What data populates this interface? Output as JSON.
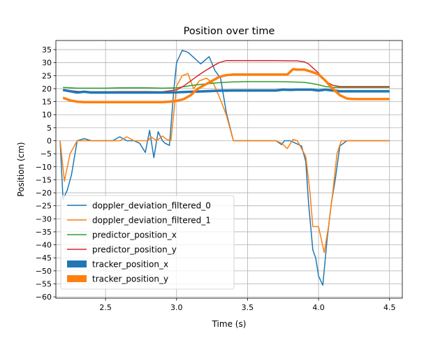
{
  "chart_data": {
    "type": "line",
    "title": "Position over time",
    "xlabel": "Time (s)",
    "ylabel": "Position (cm)",
    "xlim": [
      2.15,
      4.59
    ],
    "ylim": [
      -60.5,
      38.5
    ],
    "xticks": [
      2.5,
      3.0,
      3.5,
      4.0,
      4.5
    ],
    "xtick_labels": [
      "2.5",
      "3.0",
      "3.5",
      "4.0",
      "4.5"
    ],
    "yticks": [
      -60,
      -55,
      -50,
      -45,
      -40,
      -35,
      -30,
      -25,
      -20,
      -15,
      -10,
      -5,
      0,
      5,
      10,
      15,
      20,
      25,
      30,
      35
    ],
    "ytick_labels": [
      "−60",
      "−55",
      "−50",
      "−45",
      "−40",
      "−35",
      "−30",
      "−25",
      "−20",
      "−15",
      "−10",
      "−5",
      "0",
      "5",
      "10",
      "15",
      "20",
      "25",
      "30",
      "35"
    ],
    "grid": true,
    "legend_position": "lower-left",
    "series": [
      {
        "name": "doppler_deviation_filtered_0",
        "color": "#1f77b4",
        "width": 1.5,
        "points": [
          [
            2.18,
            0
          ],
          [
            2.2,
            -22.5
          ],
          [
            2.23,
            -19
          ],
          [
            2.26,
            -13
          ],
          [
            2.3,
            0
          ],
          [
            2.35,
            0.8
          ],
          [
            2.4,
            0
          ],
          [
            2.45,
            0
          ],
          [
            2.5,
            0
          ],
          [
            2.55,
            0
          ],
          [
            2.6,
            1.5
          ],
          [
            2.65,
            0
          ],
          [
            2.7,
            0
          ],
          [
            2.74,
            -1
          ],
          [
            2.78,
            -4.5
          ],
          [
            2.81,
            4
          ],
          [
            2.84,
            -6.5
          ],
          [
            2.87,
            3.5
          ],
          [
            2.9,
            0
          ],
          [
            2.92,
            -1
          ],
          [
            2.95,
            -1.8
          ],
          [
            2.98,
            19
          ],
          [
            3.0,
            30
          ],
          [
            3.04,
            34.7
          ],
          [
            3.08,
            34
          ],
          [
            3.12,
            32
          ],
          [
            3.17,
            29.5
          ],
          [
            3.23,
            32.3
          ],
          [
            3.27,
            27
          ],
          [
            3.31,
            24
          ],
          [
            3.35,
            11
          ],
          [
            3.4,
            0
          ],
          [
            3.45,
            0
          ],
          [
            3.5,
            0
          ],
          [
            3.55,
            0
          ],
          [
            3.6,
            0
          ],
          [
            3.65,
            0
          ],
          [
            3.7,
            0
          ],
          [
            3.74,
            -1.5
          ],
          [
            3.76,
            0
          ],
          [
            3.8,
            0
          ],
          [
            3.84,
            -1
          ],
          [
            3.88,
            -2
          ],
          [
            3.91,
            -8
          ],
          [
            3.93,
            -24
          ],
          [
            3.96,
            -42
          ],
          [
            3.98,
            -45
          ],
          [
            4.0,
            -52
          ],
          [
            4.03,
            -55.5
          ],
          [
            4.06,
            -38
          ],
          [
            4.09,
            -24
          ],
          [
            4.12,
            -14
          ],
          [
            4.15,
            -2
          ],
          [
            4.2,
            0
          ],
          [
            4.3,
            0
          ],
          [
            4.4,
            0
          ],
          [
            4.5,
            0
          ]
        ]
      },
      {
        "name": "doppler_deviation_filtered_1",
        "color": "#ff7f0e",
        "width": 1.5,
        "points": [
          [
            2.18,
            0
          ],
          [
            2.21,
            -15.5
          ],
          [
            2.25,
            -5
          ],
          [
            2.3,
            0
          ],
          [
            2.35,
            0
          ],
          [
            2.4,
            0
          ],
          [
            2.45,
            0
          ],
          [
            2.5,
            0
          ],
          [
            2.55,
            0
          ],
          [
            2.6,
            0
          ],
          [
            2.65,
            1.5
          ],
          [
            2.7,
            0
          ],
          [
            2.75,
            0
          ],
          [
            2.8,
            0
          ],
          [
            2.82,
            1.5
          ],
          [
            2.86,
            0
          ],
          [
            2.9,
            1.8
          ],
          [
            2.93,
            0.5
          ],
          [
            2.96,
            0
          ],
          [
            3.0,
            21
          ],
          [
            3.04,
            25
          ],
          [
            3.08,
            25.8
          ],
          [
            3.12,
            20
          ],
          [
            3.16,
            23
          ],
          [
            3.21,
            24
          ],
          [
            3.26,
            22
          ],
          [
            3.3,
            17
          ],
          [
            3.35,
            10
          ],
          [
            3.4,
            0
          ],
          [
            3.45,
            0
          ],
          [
            3.5,
            0
          ],
          [
            3.55,
            0
          ],
          [
            3.6,
            0
          ],
          [
            3.65,
            0
          ],
          [
            3.7,
            0
          ],
          [
            3.74,
            -1
          ],
          [
            3.78,
            -3
          ],
          [
            3.82,
            0.5
          ],
          [
            3.85,
            0
          ],
          [
            3.88,
            -3
          ],
          [
            3.91,
            -6
          ],
          [
            3.94,
            -20
          ],
          [
            3.96,
            -33
          ],
          [
            4.0,
            -33
          ],
          [
            4.04,
            -43
          ],
          [
            4.07,
            -33
          ],
          [
            4.1,
            -20
          ],
          [
            4.13,
            -5
          ],
          [
            4.16,
            0
          ],
          [
            4.2,
            0
          ],
          [
            4.3,
            0
          ],
          [
            4.4,
            0
          ],
          [
            4.5,
            0
          ]
        ]
      },
      {
        "name": "predictor_position_x",
        "color": "#2ca02c",
        "width": 1.5,
        "points": [
          [
            2.2,
            20.5
          ],
          [
            2.3,
            20.2
          ],
          [
            2.4,
            20.2
          ],
          [
            2.5,
            20.2
          ],
          [
            2.6,
            20.3
          ],
          [
            2.7,
            20.3
          ],
          [
            2.8,
            20.3
          ],
          [
            2.9,
            20.2
          ],
          [
            3.0,
            20.3
          ],
          [
            3.1,
            21.2
          ],
          [
            3.2,
            21.8
          ],
          [
            3.3,
            22.3
          ],
          [
            3.4,
            22.6
          ],
          [
            3.5,
            22.7
          ],
          [
            3.6,
            22.7
          ],
          [
            3.7,
            22.7
          ],
          [
            3.8,
            22.6
          ],
          [
            3.9,
            22.4
          ],
          [
            3.95,
            22
          ],
          [
            4.0,
            21.5
          ],
          [
            4.05,
            20.8
          ],
          [
            4.1,
            20.5
          ],
          [
            4.2,
            20.5
          ],
          [
            4.3,
            20.5
          ],
          [
            4.4,
            20.5
          ],
          [
            4.5,
            20.5
          ]
        ]
      },
      {
        "name": "predictor_position_y",
        "color": "#d62728",
        "width": 1.5,
        "points": [
          [
            2.2,
            19.5
          ],
          [
            2.3,
            19
          ],
          [
            2.35,
            18.8
          ],
          [
            2.4,
            18.8
          ],
          [
            2.5,
            18.8
          ],
          [
            2.6,
            18.9
          ],
          [
            2.7,
            18.9
          ],
          [
            2.8,
            18.9
          ],
          [
            2.9,
            18.8
          ],
          [
            3.0,
            19.5
          ],
          [
            3.05,
            21
          ],
          [
            3.1,
            23
          ],
          [
            3.15,
            25
          ],
          [
            3.2,
            26.8
          ],
          [
            3.25,
            28.5
          ],
          [
            3.3,
            30
          ],
          [
            3.35,
            30.8
          ],
          [
            3.4,
            30.8
          ],
          [
            3.5,
            30.8
          ],
          [
            3.6,
            30.8
          ],
          [
            3.7,
            30.8
          ],
          [
            3.8,
            30.7
          ],
          [
            3.85,
            30.7
          ],
          [
            3.9,
            30.3
          ],
          [
            3.93,
            29.5
          ],
          [
            3.96,
            28
          ],
          [
            4.0,
            26
          ],
          [
            4.03,
            24
          ],
          [
            4.06,
            22.5
          ],
          [
            4.1,
            21.3
          ],
          [
            4.15,
            20.8
          ],
          [
            4.2,
            20.8
          ],
          [
            4.3,
            20.8
          ],
          [
            4.4,
            20.8
          ],
          [
            4.5,
            20.8
          ]
        ]
      },
      {
        "name": "tracker_position_x",
        "color": "#1f77b4",
        "width": 3.5,
        "points": [
          [
            2.2,
            19.5
          ],
          [
            2.25,
            19
          ],
          [
            2.3,
            18.5
          ],
          [
            2.35,
            18.8
          ],
          [
            2.4,
            18.5
          ],
          [
            2.5,
            18.5
          ],
          [
            2.6,
            18.5
          ],
          [
            2.7,
            18.5
          ],
          [
            2.8,
            18.5
          ],
          [
            2.9,
            18.5
          ],
          [
            3.0,
            18.6
          ],
          [
            3.1,
            18.8
          ],
          [
            3.2,
            19
          ],
          [
            3.3,
            19.2
          ],
          [
            3.4,
            19.3
          ],
          [
            3.5,
            19.3
          ],
          [
            3.6,
            19.3
          ],
          [
            3.7,
            19.3
          ],
          [
            3.75,
            19.6
          ],
          [
            3.8,
            19.5
          ],
          [
            3.85,
            19.6
          ],
          [
            3.9,
            19.6
          ],
          [
            3.95,
            19.6
          ],
          [
            4.0,
            19.3
          ],
          [
            4.05,
            19.6
          ],
          [
            4.1,
            19.3
          ],
          [
            4.15,
            19
          ],
          [
            4.2,
            19
          ],
          [
            4.3,
            19
          ],
          [
            4.4,
            19
          ],
          [
            4.5,
            19
          ]
        ]
      },
      {
        "name": "tracker_position_y",
        "color": "#ff7f0e",
        "width": 3.5,
        "points": [
          [
            2.2,
            16.5
          ],
          [
            2.25,
            15.5
          ],
          [
            2.3,
            15
          ],
          [
            2.35,
            14.8
          ],
          [
            2.4,
            14.8
          ],
          [
            2.5,
            14.8
          ],
          [
            2.6,
            14.8
          ],
          [
            2.7,
            14.8
          ],
          [
            2.8,
            14.8
          ],
          [
            2.9,
            14.8
          ],
          [
            2.95,
            15
          ],
          [
            3.0,
            15.3
          ],
          [
            3.05,
            16
          ],
          [
            3.1,
            17.5
          ],
          [
            3.15,
            20
          ],
          [
            3.2,
            21.5
          ],
          [
            3.25,
            23
          ],
          [
            3.3,
            24.5
          ],
          [
            3.35,
            25.2
          ],
          [
            3.4,
            25.4
          ],
          [
            3.5,
            25.4
          ],
          [
            3.6,
            25.4
          ],
          [
            3.7,
            25.4
          ],
          [
            3.78,
            25.4
          ],
          [
            3.82,
            27.5
          ],
          [
            3.85,
            27.3
          ],
          [
            3.9,
            27.3
          ],
          [
            3.95,
            26.5
          ],
          [
            4.0,
            25.5
          ],
          [
            4.05,
            23
          ],
          [
            4.1,
            20
          ],
          [
            4.15,
            17.5
          ],
          [
            4.2,
            16.2
          ],
          [
            4.25,
            16
          ],
          [
            4.3,
            16
          ],
          [
            4.4,
            16
          ],
          [
            4.5,
            16
          ]
        ]
      }
    ]
  }
}
